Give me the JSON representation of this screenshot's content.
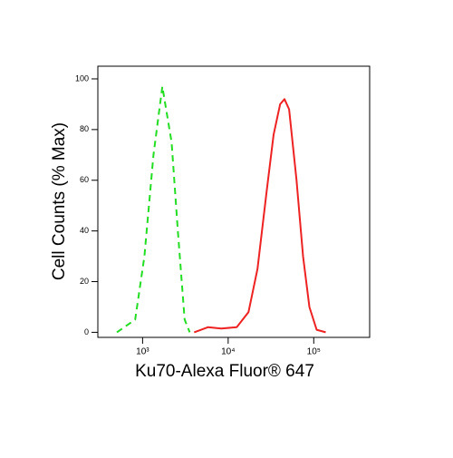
{
  "chart_data": {
    "type": "line",
    "xlabel": "Ku70-Alexa Fluor® 647",
    "ylabel": "Cell Counts (% Max)",
    "xscale": "log",
    "xlim": [
      300,
      450000
    ],
    "ylim": [
      -2,
      105
    ],
    "xticks": [
      {
        "value": 1000,
        "label": "10³"
      },
      {
        "value": 10000,
        "label": "10⁴"
      },
      {
        "value": 100000,
        "label": "10⁵"
      }
    ],
    "yticks": [
      0,
      20,
      40,
      60,
      80,
      100
    ],
    "series": [
      {
        "color": "#22dd22",
        "dashed": true,
        "x": [
          500,
          820,
          1050,
          1340,
          1700,
          2180,
          2580,
          3100,
          3550
        ],
        "values": [
          0,
          5,
          30,
          70,
          97,
          75,
          40,
          5,
          0
        ]
      },
      {
        "color": "#ee2222",
        "dashed": false,
        "x": [
          4000,
          5800,
          8300,
          12600,
          17300,
          22000,
          28000,
          34000,
          40500,
          45500,
          51500,
          63000,
          75000,
          89000,
          108000,
          138000
        ],
        "values": [
          0,
          2,
          1.5,
          2,
          8,
          25,
          55,
          78,
          90,
          92,
          88,
          60,
          30,
          10,
          1,
          0
        ]
      }
    ]
  }
}
